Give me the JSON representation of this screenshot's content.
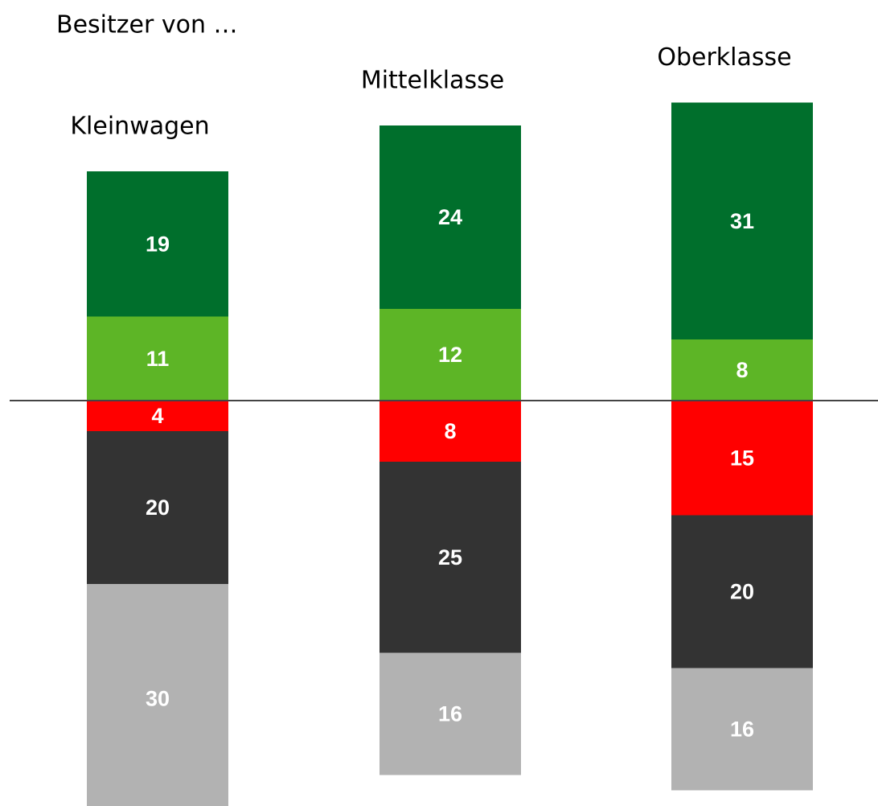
{
  "chart_data": {
    "type": "diverging_bar",
    "title": "Besitzer von …",
    "categories": [
      "Kleinwagen",
      "Mittelklasse",
      "Oberklasse"
    ],
    "series": [
      {
        "color": "#5db526",
        "values": [
          11,
          12,
          8
        ]
      },
      {
        "color": "#006f2c",
        "values": [
          19,
          24,
          31
        ]
      },
      {
        "color": "#ff0000",
        "values": [
          -4,
          -8,
          -15
        ],
        "value_labels": [
          "4",
          "8",
          "15"
        ]
      },
      {
        "color": "#333333",
        "values": [
          -20,
          -25,
          -20
        ],
        "value_labels": [
          "20",
          "25",
          "20"
        ]
      },
      {
        "color": "#b2b2b2",
        "values": [
          -30,
          -16,
          -16
        ],
        "value_labels": [
          "30",
          "16",
          "16"
        ]
      }
    ]
  }
}
